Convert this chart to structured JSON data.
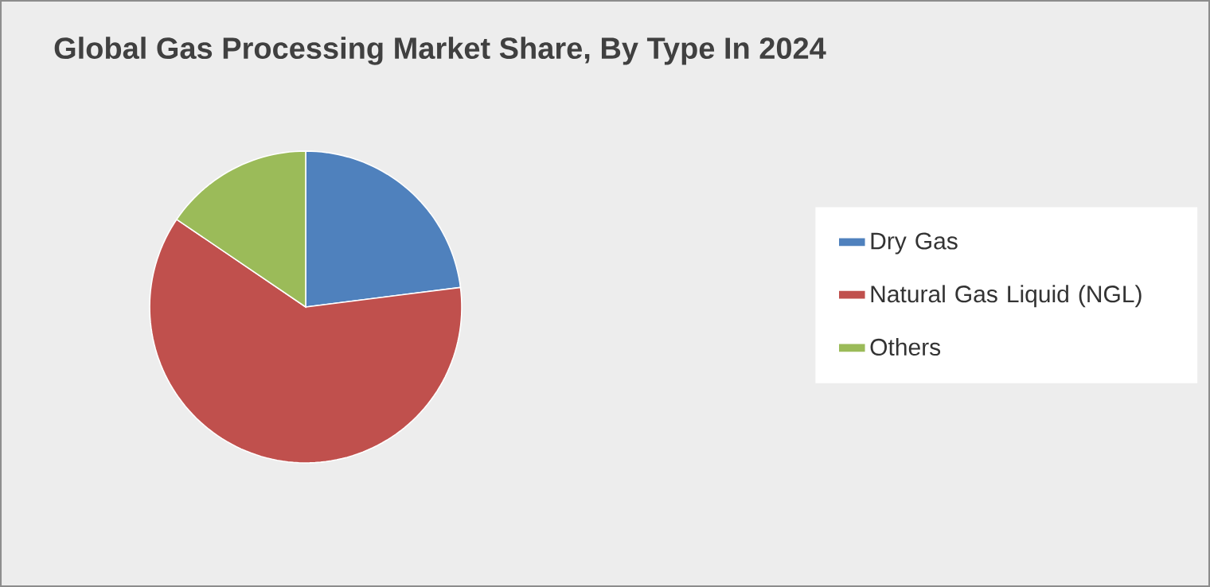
{
  "chart_data": {
    "type": "pie",
    "title": "Global Gas Processing Market Share, By Type In 2024",
    "categories": [
      "Dry Gas",
      "Natural Gas Liquid (NGL)",
      "Others"
    ],
    "values": [
      23,
      61.5,
      15.5
    ],
    "colors": [
      "#4f81bd",
      "#c0504d",
      "#9bbb59"
    ],
    "legend": "right"
  }
}
